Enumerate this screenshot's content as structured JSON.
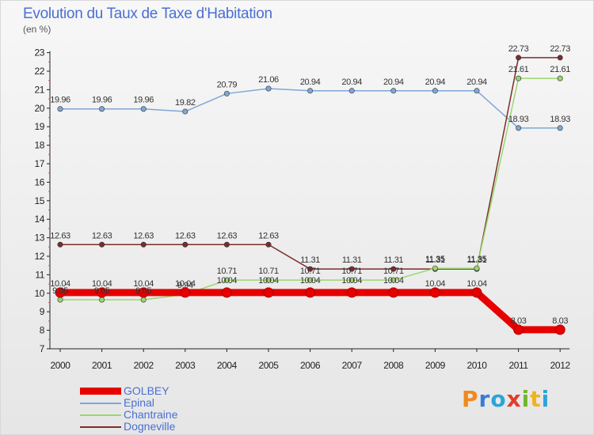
{
  "title": "Evolution du Taux de Taxe d'Habitation",
  "subtitle": "(en %)",
  "logo": {
    "parts": [
      "P",
      "r",
      "o",
      "x",
      "i",
      "t",
      "i"
    ]
  },
  "chart_data": {
    "type": "line",
    "title": "Evolution du Taux de Taxe d'Habitation",
    "ylabel": "(en %)",
    "x": [
      "2000",
      "2001",
      "2002",
      "2003",
      "2004",
      "2005",
      "2006",
      "2007",
      "2008",
      "2009",
      "2010",
      "2011",
      "2012"
    ],
    "ylim": [
      7,
      23
    ],
    "yticks": [
      7,
      8,
      9,
      10,
      11,
      12,
      13,
      14,
      15,
      16,
      17,
      18,
      19,
      20,
      21,
      22,
      23
    ],
    "grid": "none",
    "legend": "bottom-left",
    "series": [
      {
        "name": "GOLBEY",
        "color": "#e60000",
        "width": 9,
        "values": [
          10.04,
          10.04,
          10.04,
          10.04,
          10.04,
          10.04,
          10.04,
          10.04,
          10.04,
          10.04,
          10.04,
          8.03,
          8.03
        ],
        "labels": [
          "10.04",
          "10.04",
          "10.04",
          "10.04",
          "",
          "",
          "",
          "",
          "",
          "10.04",
          "10.04",
          "8.03",
          "8.03"
        ]
      },
      {
        "name": "Epinal",
        "color": "#7fa7d6",
        "width": 1.5,
        "values": [
          19.96,
          19.96,
          19.96,
          19.82,
          20.79,
          21.06,
          20.94,
          20.94,
          20.94,
          20.94,
          20.94,
          18.93,
          18.93
        ],
        "labels": [
          "19.96",
          "19.96",
          "19.96",
          "19.82",
          "20.79",
          "21.06",
          "20.94",
          "20.94",
          "20.94",
          "20.94",
          "20.94",
          "18.93",
          "18.93"
        ]
      },
      {
        "name": "Chantraine",
        "color": "#9ad66e",
        "width": 1.5,
        "values": [
          9.65,
          9.65,
          9.65,
          9.94,
          10.71,
          10.71,
          10.71,
          10.71,
          10.71,
          11.35,
          11.35,
          21.61,
          21.61
        ],
        "labels": [
          "9.65",
          "9.65",
          "9.65",
          "9.94",
          "10.71",
          "10.71",
          "10.71",
          "10.71",
          "10.71",
          "11.35",
          "11.35",
          "21.61",
          "21.61"
        ]
      },
      {
        "name": "Dogneville",
        "color": "#7b2c2c",
        "width": 1.5,
        "values": [
          12.63,
          12.63,
          12.63,
          12.63,
          12.63,
          12.63,
          11.31,
          11.31,
          11.31,
          11.31,
          11.31,
          22.73,
          22.73
        ],
        "labels": [
          "12.63",
          "12.63",
          "12.63",
          "12.63",
          "12.63",
          "12.63",
          "11.31",
          "11.31",
          "11.31",
          "11.31",
          "11.31",
          "22.73",
          "22.73"
        ]
      }
    ],
    "golbey_mid_labels": [
      "10.04",
      "10.04",
      "10.04",
      "10.04",
      "10.04"
    ]
  }
}
